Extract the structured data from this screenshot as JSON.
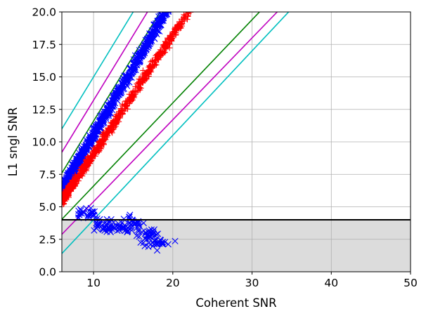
{
  "chart_data": {
    "type": "scatter",
    "title": "",
    "xlabel": "Coherent SNR",
    "ylabel": "L1 sngl SNR",
    "xlim": [
      6,
      50
    ],
    "ylim": [
      0,
      20
    ],
    "xticks": [
      10,
      20,
      30,
      40,
      50
    ],
    "yticks": [
      0.0,
      2.5,
      5.0,
      7.5,
      10.0,
      12.5,
      15.0,
      17.5,
      20.0
    ],
    "xtick_labels": [
      "10",
      "20",
      "30",
      "40",
      "50"
    ],
    "ytick_labels": [
      "0.0",
      "2.5",
      "5.0",
      "7.5",
      "10.0",
      "12.5",
      "15.0",
      "17.5",
      "20.0"
    ],
    "grid": true,
    "threshold": {
      "y": 4.0,
      "color": "#000000",
      "shaded_below": true,
      "shade_color": "#dcdcdc"
    },
    "reference_lines": [
      {
        "color": "#00bfbf",
        "slope": 1.0,
        "intercept": 5.0
      },
      {
        "color": "#bf00bf",
        "slope": 1.0,
        "intercept": 3.2
      },
      {
        "color": "#008000",
        "slope": 1.0,
        "intercept": 1.6
      },
      {
        "color": "#008000",
        "slope": 0.64,
        "intercept": 0.2
      },
      {
        "color": "#bf00bf",
        "slope": 0.63,
        "intercept": -0.9
      },
      {
        "color": "#00bfbf",
        "slope": 0.65,
        "intercept": -2.5
      }
    ],
    "series": [
      {
        "marker": "x",
        "color": "#0000ff",
        "bands": [
          {
            "x_min": 6.0,
            "x_max": 19.5,
            "slope": 1.05,
            "intercept": 0.0,
            "spread": 0.35
          }
        ],
        "clusters": [
          {
            "x": 9.0,
            "y": 4.5
          },
          {
            "x": 11.0,
            "y": 3.6
          },
          {
            "x": 13.0,
            "y": 3.4
          },
          {
            "x": 15.0,
            "y": 3.7
          },
          {
            "x": 17.0,
            "y": 3.0
          },
          {
            "x": 18.0,
            "y": 2.1
          }
        ]
      },
      {
        "marker": "+",
        "color": "#ff0000",
        "bands": [
          {
            "x_min": 6.0,
            "x_max": 22.5,
            "slope": 0.91,
            "intercept": 0.0,
            "spread": 0.3
          }
        ]
      }
    ]
  }
}
